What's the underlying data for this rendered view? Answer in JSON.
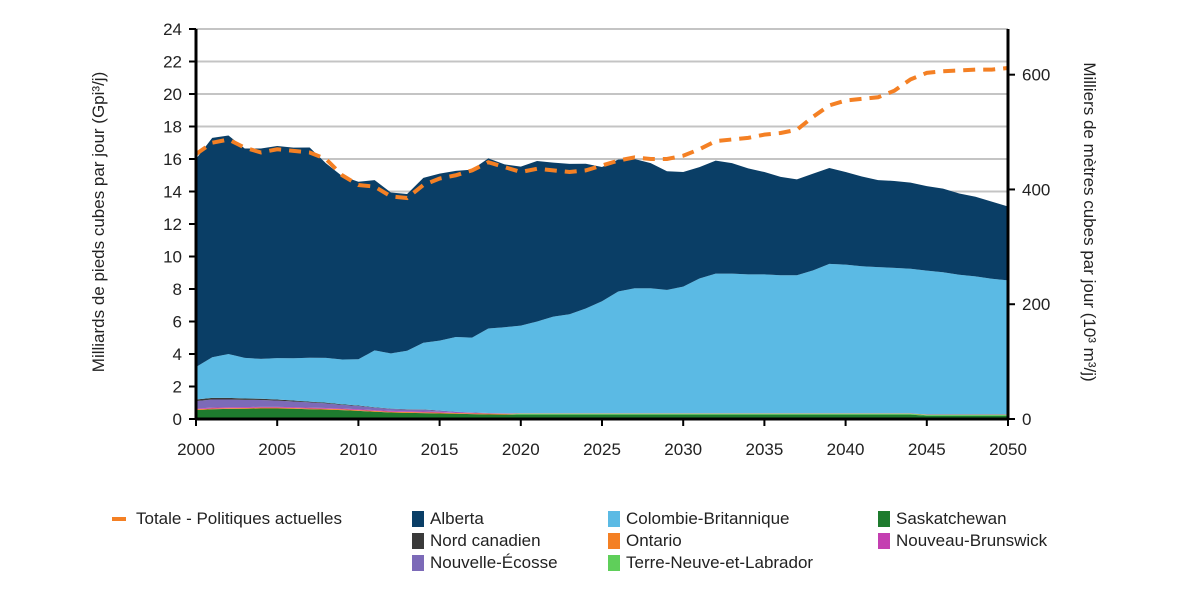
{
  "chart_data": {
    "type": "area",
    "stacked": true,
    "x": [
      2000,
      2001,
      2002,
      2003,
      2004,
      2005,
      2006,
      2007,
      2008,
      2009,
      2010,
      2011,
      2012,
      2013,
      2014,
      2015,
      2016,
      2017,
      2018,
      2019,
      2020,
      2021,
      2022,
      2023,
      2024,
      2025,
      2026,
      2027,
      2028,
      2029,
      2030,
      2031,
      2032,
      2033,
      2034,
      2035,
      2036,
      2037,
      2038,
      2039,
      2040,
      2041,
      2042,
      2043,
      2044,
      2045,
      2046,
      2047,
      2048,
      2049,
      2050
    ],
    "xlim": [
      2000,
      2050
    ],
    "x_ticks": [
      "2000",
      "2005",
      "2010",
      "2015",
      "2020",
      "2025",
      "2030",
      "2035",
      "2040",
      "2045",
      "2050"
    ],
    "ylim": [
      0,
      24
    ],
    "y_ticks": [
      "0",
      "2",
      "4",
      "6",
      "8",
      "10",
      "12",
      "14",
      "16",
      "18",
      "20",
      "22",
      "24"
    ],
    "ylabel": "Milliards de pieds cubes par jour (Gpi³/j)",
    "y2_ticks": [
      "0",
      "200",
      "400",
      "600"
    ],
    "y2_tick_values": [
      0,
      200,
      400,
      600
    ],
    "y2label": "Milliers de mètres cubes par jour (10³ m³/j)",
    "grid": true,
    "legend_position": "bottom",
    "series": [
      {
        "name": "Saskatchewan",
        "color": "#1e7b2e",
        "values": [
          0.55,
          0.6,
          0.62,
          0.63,
          0.65,
          0.65,
          0.63,
          0.6,
          0.58,
          0.55,
          0.5,
          0.45,
          0.4,
          0.38,
          0.36,
          0.34,
          0.32,
          0.3,
          0.28,
          0.27,
          0.27,
          0.27,
          0.27,
          0.27,
          0.27,
          0.27,
          0.27,
          0.27,
          0.27,
          0.27,
          0.27,
          0.27,
          0.27,
          0.27,
          0.27,
          0.27,
          0.27,
          0.27,
          0.27,
          0.27,
          0.27,
          0.27,
          0.27,
          0.27,
          0.27,
          0.2,
          0.2,
          0.2,
          0.2,
          0.2,
          0.2
        ]
      },
      {
        "name": "Terre-Neuve-et-Labrador",
        "color": "#5fcf5a",
        "values": [
          0,
          0,
          0,
          0,
          0,
          0,
          0,
          0,
          0,
          0,
          0,
          0,
          0,
          0,
          0,
          0,
          0,
          0,
          0,
          0,
          0.05,
          0.05,
          0.05,
          0.05,
          0.05,
          0.05,
          0.05,
          0.05,
          0.05,
          0.05,
          0.05,
          0.05,
          0.05,
          0.05,
          0.05,
          0.05,
          0.05,
          0.05,
          0.05,
          0.05,
          0.05,
          0.05,
          0.05,
          0.05,
          0.05,
          0.05,
          0.05,
          0.05,
          0.05,
          0.05,
          0.05
        ]
      },
      {
        "name": "Ontario",
        "color": "#f48024",
        "values": [
          0.05,
          0.05,
          0.05,
          0.05,
          0.05,
          0.05,
          0.05,
          0.05,
          0.05,
          0.05,
          0.05,
          0.05,
          0.05,
          0.05,
          0.05,
          0.05,
          0.05,
          0.05,
          0.05,
          0.05,
          0.02,
          0.02,
          0.02,
          0.02,
          0.02,
          0.02,
          0.02,
          0.02,
          0.02,
          0.02,
          0.02,
          0.02,
          0.02,
          0.02,
          0.02,
          0.02,
          0.02,
          0.02,
          0.02,
          0.02,
          0.02,
          0.02,
          0.02,
          0.02,
          0.02,
          0.02,
          0.02,
          0.02,
          0.02,
          0.02,
          0.02
        ]
      },
      {
        "name": "Nouveau-Brunswick",
        "color": "#c43fb1",
        "values": [
          0.05,
          0.05,
          0.05,
          0.05,
          0.05,
          0.05,
          0.05,
          0.05,
          0.05,
          0.05,
          0.05,
          0.05,
          0.05,
          0.05,
          0.05,
          0.05,
          0.03,
          0.03,
          0.02,
          0.02,
          0.01,
          0.01,
          0.01,
          0.01,
          0.01,
          0.01,
          0.01,
          0.01,
          0.01,
          0.01,
          0.01,
          0.01,
          0.01,
          0.01,
          0.01,
          0.01,
          0.01,
          0.01,
          0.01,
          0.01,
          0.01,
          0.01,
          0.01,
          0.01,
          0.01,
          0.01,
          0.01,
          0.01,
          0.01,
          0.01,
          0.01
        ]
      },
      {
        "name": "Nouvelle-Écosse",
        "color": "#7c6ab8",
        "values": [
          0.45,
          0.5,
          0.48,
          0.45,
          0.42,
          0.38,
          0.35,
          0.32,
          0.28,
          0.22,
          0.2,
          0.15,
          0.12,
          0.1,
          0.12,
          0.08,
          0.05,
          0.03,
          0.02,
          0.01,
          0,
          0,
          0,
          0,
          0,
          0,
          0,
          0,
          0,
          0,
          0,
          0,
          0,
          0,
          0,
          0,
          0,
          0,
          0,
          0,
          0,
          0,
          0,
          0,
          0,
          0,
          0,
          0,
          0,
          0,
          0
        ]
      },
      {
        "name": "Nord canadien",
        "color": "#3a3a3a",
        "values": [
          0.1,
          0.1,
          0.1,
          0.08,
          0.08,
          0.07,
          0.06,
          0.05,
          0.05,
          0.04,
          0.03,
          0.02,
          0.02,
          0.02,
          0.01,
          0,
          0,
          0,
          0,
          0,
          0,
          0,
          0,
          0,
          0,
          0,
          0,
          0,
          0,
          0,
          0,
          0,
          0,
          0,
          0,
          0,
          0,
          0,
          0,
          0,
          0,
          0,
          0,
          0,
          0,
          0,
          0,
          0,
          0,
          0,
          0
        ]
      },
      {
        "name": "Colombie-Britannique",
        "color": "#5bbae4",
        "values": [
          2.0,
          2.5,
          2.7,
          2.5,
          2.45,
          2.55,
          2.6,
          2.7,
          2.75,
          2.75,
          2.85,
          3.5,
          3.4,
          3.6,
          4.1,
          4.3,
          4.6,
          4.6,
          5.2,
          5.3,
          5.4,
          5.65,
          5.95,
          6.1,
          6.45,
          6.9,
          7.5,
          7.7,
          7.7,
          7.6,
          7.8,
          8.3,
          8.6,
          8.6,
          8.55,
          8.55,
          8.5,
          8.5,
          8.8,
          9.2,
          9.15,
          9.05,
          9.0,
          8.95,
          8.9,
          8.85,
          8.75,
          8.6,
          8.5,
          8.35,
          8.25
        ]
      },
      {
        "name": "Alberta",
        "color": "#0a3e66",
        "values": [
          12.8,
          13.5,
          13.45,
          12.89,
          12.95,
          13.05,
          12.96,
          12.94,
          11.98,
          11.29,
          10.92,
          10.48,
          9.9,
          9.65,
          10.15,
          10.28,
          10.22,
          10.34,
          10.47,
          10.02,
          9.78,
          9.88,
          9.48,
          9.25,
          8.91,
          8.26,
          8.12,
          7.95,
          7.7,
          7.3,
          7.05,
          6.85,
          6.95,
          6.8,
          6.52,
          6.3,
          6.05,
          5.9,
          5.95,
          5.9,
          5.7,
          5.52,
          5.35,
          5.35,
          5.3,
          5.2,
          5.15,
          5.0,
          4.9,
          4.75,
          4.55
        ]
      }
    ],
    "total_line": {
      "name": "Totale - Politiques actuelles",
      "color": "#f48024",
      "values": [
        16.3,
        17.0,
        17.2,
        16.7,
        16.4,
        16.6,
        16.5,
        16.4,
        16.0,
        15.0,
        14.4,
        14.3,
        13.7,
        13.6,
        14.4,
        14.8,
        15.0,
        15.3,
        15.8,
        15.5,
        15.2,
        15.4,
        15.3,
        15.2,
        15.3,
        15.6,
        15.9,
        16.1,
        16.0,
        16.0,
        16.2,
        16.6,
        17.1,
        17.2,
        17.3,
        17.5,
        17.6,
        17.8,
        18.6,
        19.3,
        19.6,
        19.7,
        19.8,
        20.2,
        20.9,
        21.3,
        21.4,
        21.45,
        21.5,
        21.5,
        21.6
      ]
    }
  },
  "legend": {
    "total": "Totale - Politiques actuelles",
    "alberta": "Alberta",
    "cb": "Colombie-Britannique",
    "sask": "Saskatchewan",
    "nord": "Nord canadien",
    "ontario": "Ontario",
    "nb": "Nouveau-Brunswick",
    "ne": "Nouvelle-Écosse",
    "tnl": "Terre-Neuve-et-Labrador"
  },
  "colors": {
    "alberta": "#0a3e66",
    "cb": "#5bbae4",
    "sask": "#1e7b2e",
    "nord": "#3a3a3a",
    "ontario": "#f48024",
    "nb": "#c43fb1",
    "ne": "#7c6ab8",
    "tnl": "#5fcf5a",
    "total": "#f48024"
  }
}
